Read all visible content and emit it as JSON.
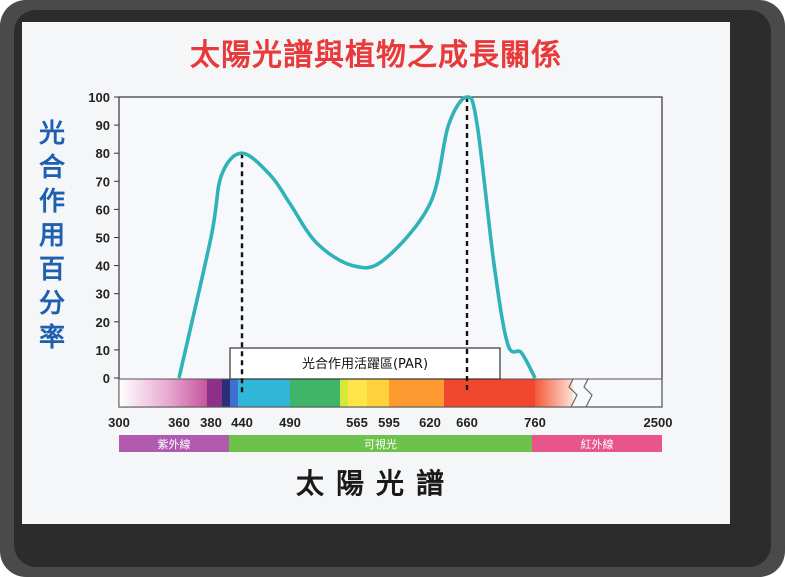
{
  "chart_data": {
    "type": "line",
    "title": "太陽光譜與植物之成長關係",
    "ylabel": "光合作用百分率",
    "xlabel": "太陽光譜",
    "ylim": [
      0,
      100
    ],
    "yticks": [
      0,
      10,
      20,
      30,
      40,
      50,
      60,
      70,
      80,
      90,
      100
    ],
    "xticks": [
      "300",
      "360",
      "380",
      "440",
      "490",
      "565",
      "595",
      "620",
      "660",
      "760",
      "2500"
    ],
    "par_label": "光合作用活躍區(PAR)",
    "bands": [
      {
        "label": "紫外線",
        "color": "#b05ab0"
      },
      {
        "label": "可視光",
        "color": "#6cc24a"
      },
      {
        "label": "紅外線",
        "color": "#e8558a"
      }
    ],
    "peaks": [
      {
        "x": 440,
        "y": 80
      },
      {
        "x": 660,
        "y": 100
      }
    ],
    "series": [
      {
        "color": "#2fb3b8",
        "points": [
          [
            360,
            0
          ],
          [
            380,
            50
          ],
          [
            400,
            72
          ],
          [
            440,
            80
          ],
          [
            470,
            72
          ],
          [
            490,
            62
          ],
          [
            520,
            48
          ],
          [
            560,
            40
          ],
          [
            590,
            42
          ],
          [
            620,
            62
          ],
          [
            640,
            90
          ],
          [
            660,
            100
          ],
          [
            675,
            90
          ],
          [
            700,
            40
          ],
          [
            720,
            12
          ],
          [
            740,
            9
          ],
          [
            760,
            0
          ]
        ]
      }
    ]
  }
}
